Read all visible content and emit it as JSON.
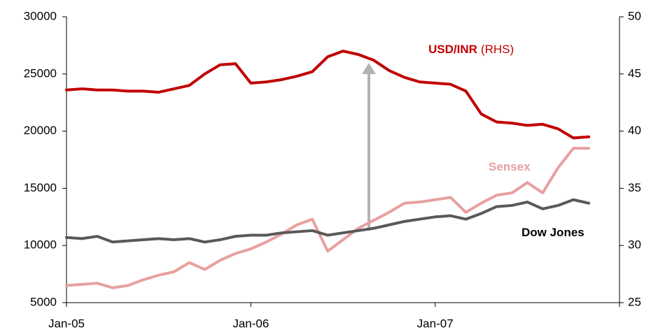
{
  "chart_data": {
    "type": "line",
    "categories": [
      "Jan-05",
      null,
      null,
      null,
      null,
      null,
      null,
      null,
      null,
      null,
      null,
      null,
      "Jan-06",
      null,
      null,
      null,
      null,
      null,
      null,
      null,
      null,
      null,
      null,
      null,
      "Jan-07",
      null,
      null,
      null,
      null,
      null,
      null,
      null,
      null,
      null,
      null,
      null
    ],
    "series": [
      {
        "name": "USD/INR",
        "color": "#c00000",
        "axis": "y2",
        "values": [
          43.6,
          43.7,
          43.6,
          43.6,
          43.5,
          43.5,
          43.4,
          43.7,
          44.0,
          45.0,
          45.8,
          45.9,
          44.2,
          44.3,
          44.5,
          44.8,
          45.2,
          46.5,
          47.0,
          46.7,
          46.2,
          45.3,
          44.7,
          44.3,
          44.2,
          44.1,
          43.5,
          41.5,
          40.8,
          40.7,
          40.5,
          40.6,
          40.2,
          39.4,
          39.5,
          null
        ]
      },
      {
        "name": "Sensex",
        "color": "#e8a0a0",
        "values": [
          6500,
          6600,
          6700,
          6300,
          6500,
          7000,
          7400,
          7700,
          8500,
          7900,
          8700,
          9300,
          9700,
          10300,
          11000,
          11800,
          12300,
          9500,
          10500,
          11500,
          12200,
          12900,
          13700,
          13800,
          14000,
          14200,
          12900,
          13700,
          14400,
          14600,
          15500,
          14600,
          16800,
          18500,
          18500,
          null
        ]
      },
      {
        "name": "Dow Jones",
        "color": "#595959",
        "values": [
          10700,
          10600,
          10800,
          10300,
          10400,
          10500,
          10600,
          10500,
          10600,
          10300,
          10500,
          10800,
          10900,
          10900,
          11100,
          11200,
          11300,
          10900,
          11100,
          11300,
          11500,
          11800,
          12100,
          12300,
          12500,
          12600,
          12300,
          12800,
          13400,
          13500,
          13800,
          13200,
          13500,
          14000,
          13700,
          null
        ]
      }
    ],
    "annotations": [
      "(RHS)"
    ],
    "ylim": [
      5000,
      30000
    ],
    "yticks": [
      5000,
      10000,
      15000,
      20000,
      25000,
      30000
    ],
    "y2lim": [
      25,
      50
    ],
    "y2ticks": [
      25,
      30,
      35,
      40,
      45,
      50
    ],
    "grid": false
  }
}
